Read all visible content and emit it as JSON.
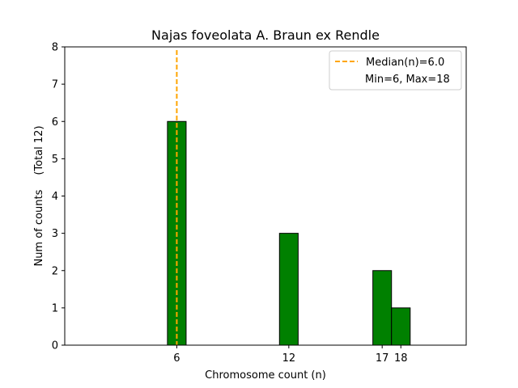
{
  "chart_data": {
    "type": "bar",
    "title": "Najas foveolata A. Braun ex Rendle",
    "xlabel": "Chromosome count (n)",
    "ylabel": "Num of counts",
    "ylabel_total": "(Total 12)",
    "x": [
      6,
      12,
      17,
      18
    ],
    "values": [
      6,
      3,
      2,
      1
    ],
    "xticks": [
      6,
      12,
      17,
      18
    ],
    "yticks": [
      0,
      1,
      2,
      3,
      4,
      5,
      6,
      7,
      8
    ],
    "xlim": [
      0,
      21.5
    ],
    "ylim": [
      0,
      8
    ],
    "bar_width": 1,
    "median": 6.0,
    "legend": {
      "position": "top-right",
      "median_label": "Median(n)=6.0",
      "range_label": "Min=6, Max=18"
    },
    "colors": {
      "bar": "#008000",
      "bar_edge": "#000000",
      "median_line": "#FFA500"
    }
  }
}
